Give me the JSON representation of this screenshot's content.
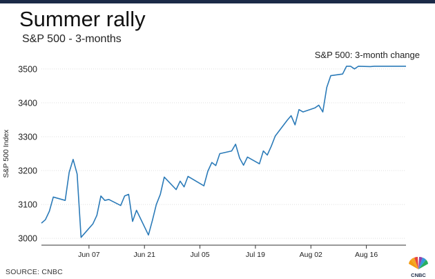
{
  "title": "Summer rally",
  "subtitle": "S&P 500 - 3-months",
  "source": "SOURCE: CNBC",
  "logo_text": "CNBC",
  "colors": {
    "line": "#2a7ab8",
    "grid": "#dddddd",
    "axis": "#333333",
    "top_bar": "#1b2a47"
  },
  "chart_data": {
    "type": "line",
    "title": "Summer rally",
    "subtitle": "S&P 500 - 3-months",
    "ylabel": "S&P 500 Index",
    "xlabel": "",
    "ylim": [
      2980,
      3520
    ],
    "yticks": [
      3000,
      3100,
      3200,
      3300,
      3400,
      3500
    ],
    "grid": "horizontal",
    "legend_position": "top-right",
    "x_ticks": [
      "Jun 07",
      "Jun 21",
      "Jul 05",
      "Jul 19",
      "Aug 02",
      "Aug 16"
    ],
    "x_tick_dates": [
      "2020-06-07",
      "2020-06-21",
      "2020-07-05",
      "2020-07-19",
      "2020-08-02",
      "2020-08-16"
    ],
    "series": [
      {
        "name": "S&P 500: 3-month change",
        "x": [
          "2020-05-26",
          "2020-05-27",
          "2020-05-28",
          "2020-05-29",
          "2020-06-01",
          "2020-06-02",
          "2020-06-03",
          "2020-06-04",
          "2020-06-05",
          "2020-06-08",
          "2020-06-09",
          "2020-06-10",
          "2020-06-11",
          "2020-06-12",
          "2020-06-15",
          "2020-06-16",
          "2020-06-17",
          "2020-06-18",
          "2020-06-19",
          "2020-06-22",
          "2020-06-23",
          "2020-06-24",
          "2020-06-25",
          "2020-06-26",
          "2020-06-29",
          "2020-06-30",
          "2020-07-01",
          "2020-07-02",
          "2020-07-06",
          "2020-07-07",
          "2020-07-08",
          "2020-07-09",
          "2020-07-10",
          "2020-07-13",
          "2020-07-14",
          "2020-07-15",
          "2020-07-16",
          "2020-07-17",
          "2020-07-20",
          "2020-07-21",
          "2020-07-22",
          "2020-07-23",
          "2020-07-24",
          "2020-07-27",
          "2020-07-28",
          "2020-07-29",
          "2020-07-30",
          "2020-07-31",
          "2020-08-03",
          "2020-08-04",
          "2020-08-05",
          "2020-08-06",
          "2020-08-07",
          "2020-08-10",
          "2020-08-11",
          "2020-08-12",
          "2020-08-13",
          "2020-08-14",
          "2020-08-17",
          "2020-08-18",
          "2020-08-19",
          "2020-08-20",
          "2020-08-21",
          "2020-08-24",
          "2020-08-25",
          "2020-08-26"
        ],
        "values": [
          3045,
          3055,
          3080,
          3122,
          3112,
          3195,
          3233,
          3190,
          3003,
          3043,
          3068,
          3125,
          3112,
          3115,
          3097,
          3125,
          3130,
          3050,
          3083,
          3010,
          3053,
          3100,
          3130,
          3181,
          3144,
          3169,
          3152,
          3183,
          3155,
          3198,
          3224,
          3215,
          3250,
          3258,
          3278,
          3237,
          3216,
          3240,
          3220,
          3258,
          3246,
          3272,
          3302,
          3348,
          3362,
          3335,
          3380,
          3373,
          3385,
          3393,
          3373,
          3445,
          3480,
          3485,
          3508,
          3508,
          3500,
          3508,
          3507,
          3508,
          3508,
          3508,
          3508,
          3508,
          3508,
          3508
        ]
      }
    ]
  }
}
